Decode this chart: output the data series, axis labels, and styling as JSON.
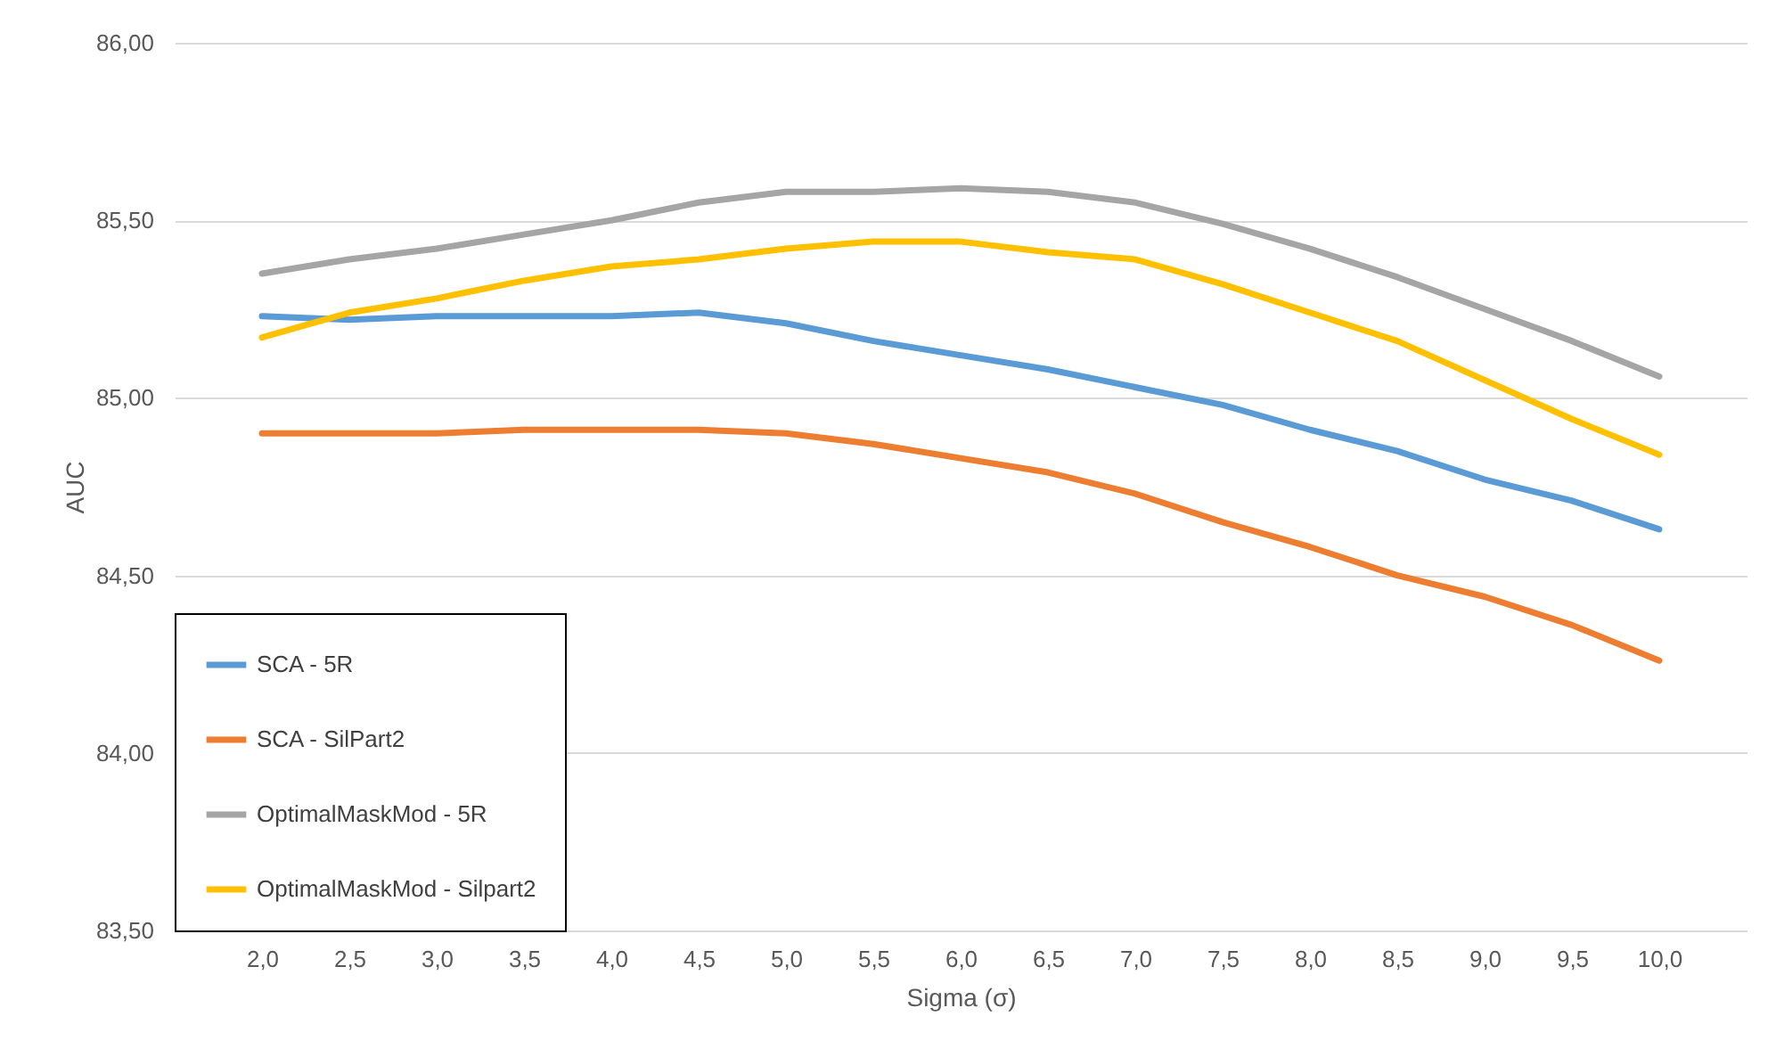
{
  "chart_data": {
    "type": "line",
    "xlabel": "Sigma (σ)",
    "ylabel": "AUC",
    "categories": [
      "2,0",
      "2,5",
      "3,0",
      "3,5",
      "4,0",
      "4,5",
      "5,0",
      "5,5",
      "6,0",
      "6,5",
      "7,0",
      "7,5",
      "8,0",
      "8,5",
      "9,0",
      "9,5",
      "10,0"
    ],
    "series": [
      {
        "name": "SCA - 5R",
        "color": "#5b9bd5",
        "values": [
          85.23,
          85.22,
          85.23,
          85.23,
          85.23,
          85.24,
          85.21,
          85.16,
          85.12,
          85.08,
          85.03,
          84.98,
          84.91,
          84.85,
          84.77,
          84.71,
          84.63
        ]
      },
      {
        "name": "SCA - SilPart2",
        "color": "#ed7d31",
        "values": [
          84.9,
          84.9,
          84.9,
          84.91,
          84.91,
          84.91,
          84.9,
          84.87,
          84.83,
          84.79,
          84.73,
          84.65,
          84.58,
          84.5,
          84.44,
          84.36,
          84.26
        ]
      },
      {
        "name": "OptimalMaskMod - 5R",
        "color": "#a5a5a5",
        "values": [
          85.35,
          85.39,
          85.42,
          85.46,
          85.5,
          85.55,
          85.58,
          85.58,
          85.59,
          85.58,
          85.55,
          85.49,
          85.42,
          85.34,
          85.25,
          85.16,
          85.06
        ]
      },
      {
        "name": "OptimalMaskMod - Silpart2",
        "color": "#ffc000",
        "values": [
          85.17,
          85.24,
          85.28,
          85.33,
          85.37,
          85.39,
          85.42,
          85.44,
          85.44,
          85.41,
          85.39,
          85.32,
          85.24,
          85.16,
          85.05,
          84.94,
          84.84
        ]
      }
    ],
    "ylim": [
      83.5,
      86
    ],
    "yticks": [
      {
        "value": 83.5,
        "label": "83,50"
      },
      {
        "value": 84,
        "label": "84,00"
      },
      {
        "value": 84.5,
        "label": "84,50"
      },
      {
        "value": 85,
        "label": "85,00"
      },
      {
        "value": 85.5,
        "label": "85,50"
      },
      {
        "value": 86,
        "label": "86,00"
      }
    ],
    "grid": "y",
    "legend": "bottom left",
    "marker": "none",
    "line_style": "solid"
  }
}
